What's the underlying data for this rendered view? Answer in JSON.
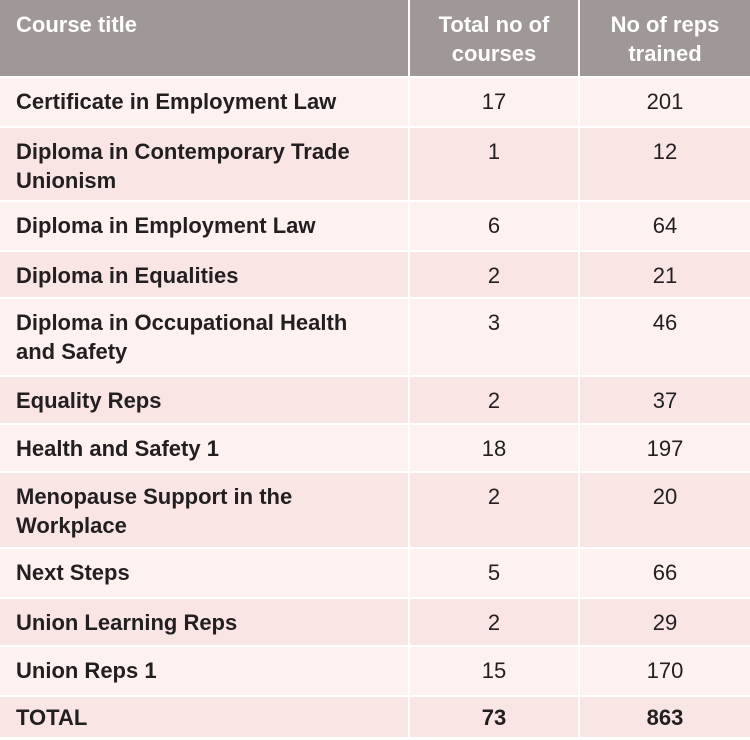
{
  "table": {
    "header": [
      "Course title",
      "Total no of courses",
      "No of reps trained"
    ],
    "rows": [
      [
        "Certificate in Employment Law",
        17,
        201
      ],
      [
        "Diploma in Contemporary Trade Unionism",
        1,
        12
      ],
      [
        "Diploma in Employment Law",
        6,
        64
      ],
      [
        "Diploma in Equalities",
        2,
        21
      ],
      [
        "Diploma in Occupational Health and Safety",
        3,
        46
      ],
      [
        "Equality Reps",
        2,
        37
      ],
      [
        "Health and Safety 1",
        18,
        197
      ],
      [
        "Menopause Support in the Workplace",
        2,
        20
      ],
      [
        "Next Steps",
        5,
        66
      ],
      [
        "Union Learning Reps",
        2,
        29
      ],
      [
        "Union Reps 1",
        15,
        170
      ]
    ],
    "total": [
      "TOTAL",
      73,
      863
    ]
  }
}
